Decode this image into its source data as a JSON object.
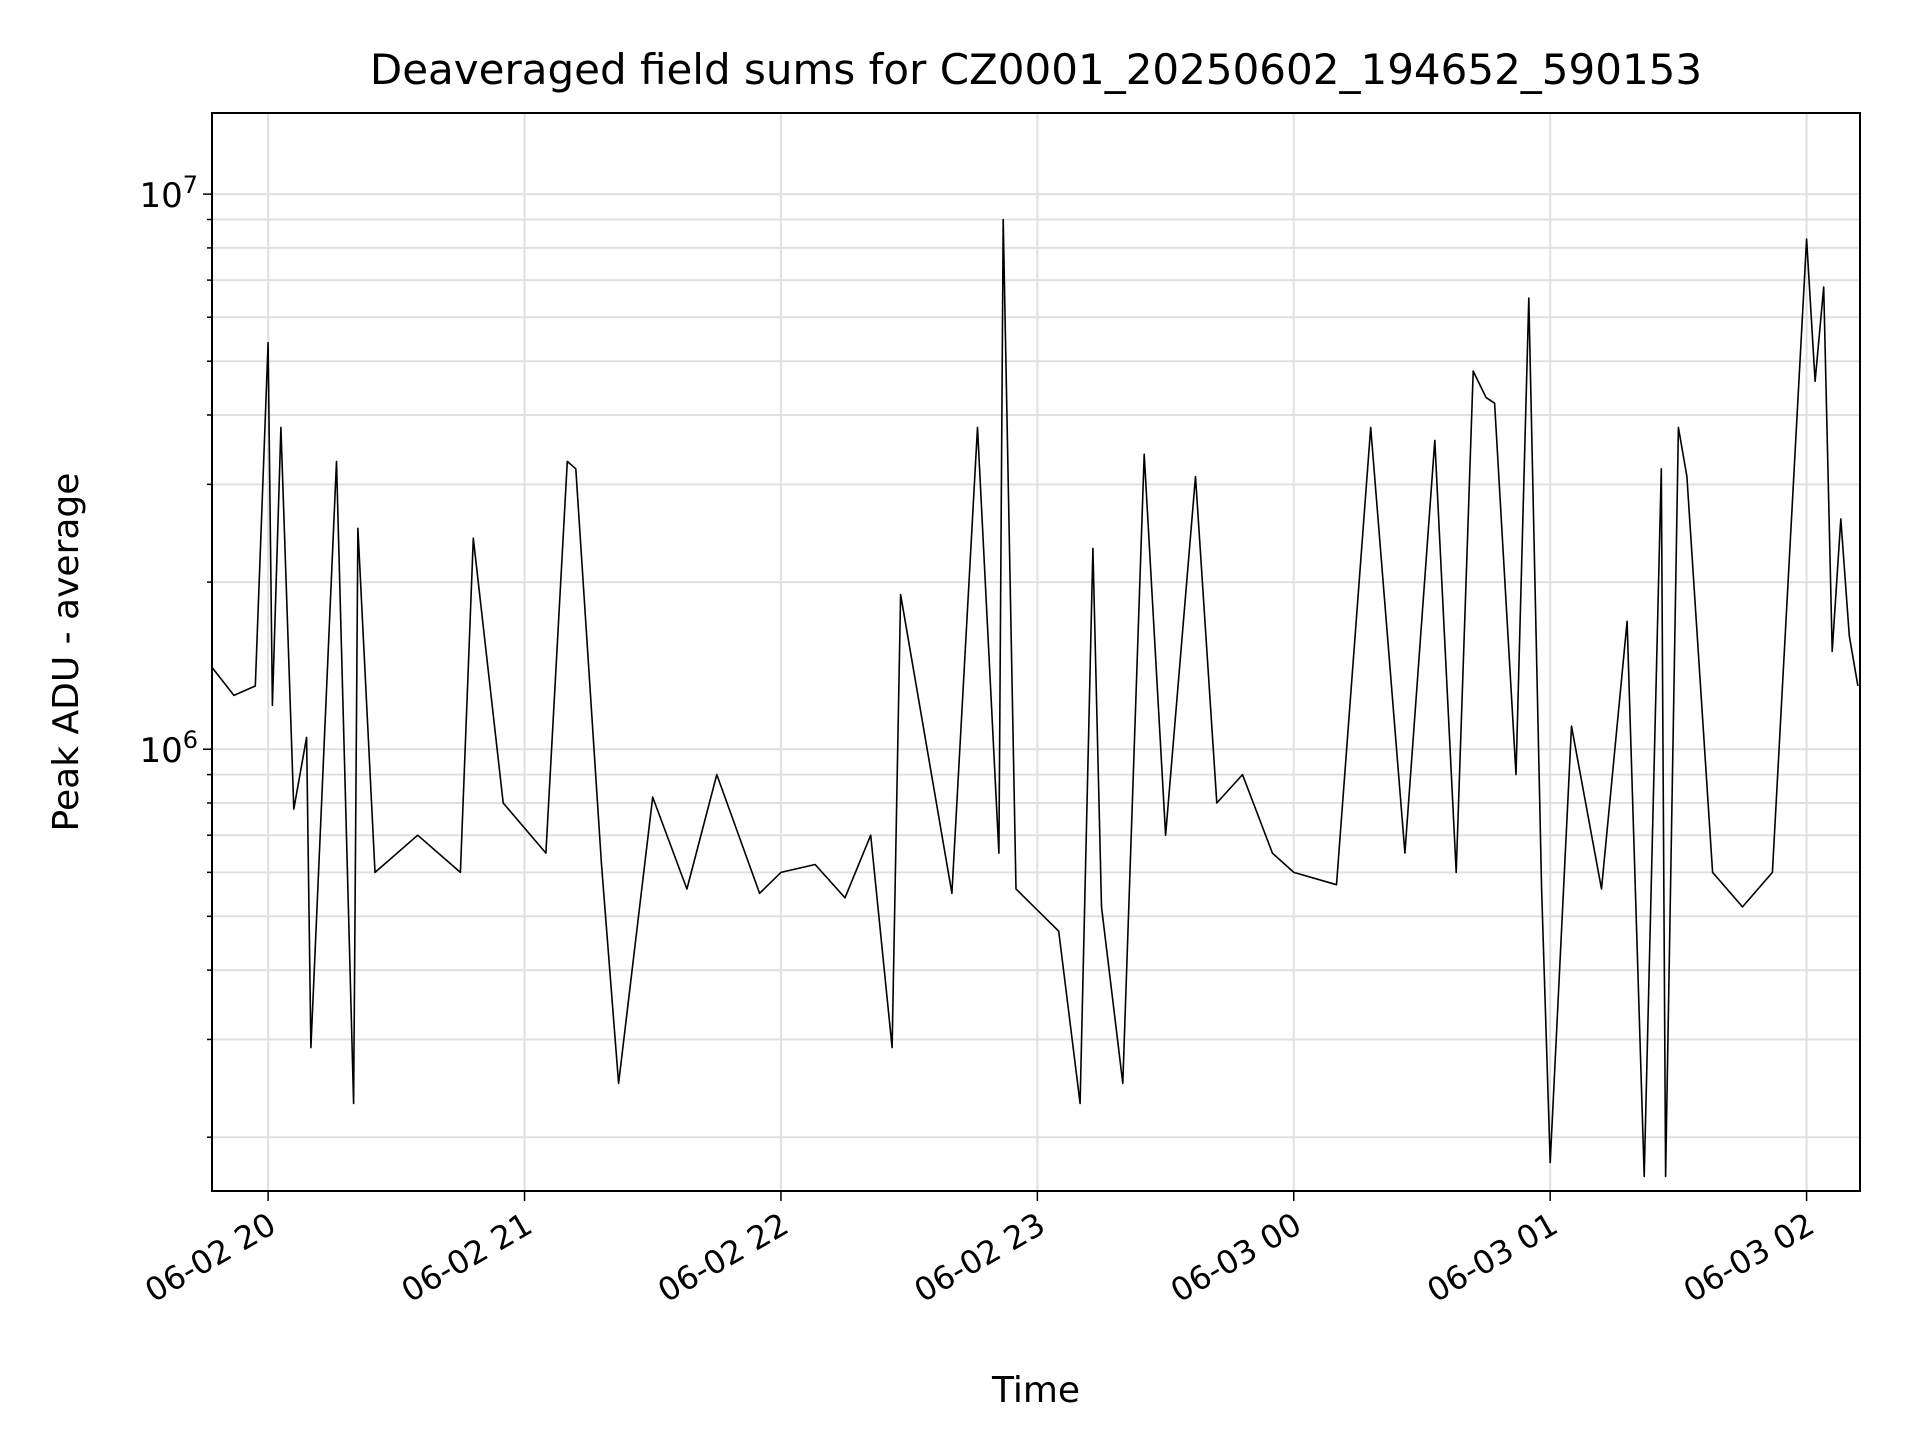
{
  "chart_data": {
    "type": "line",
    "title": "Deaveraged field sums for CZ0001_20250602_194652_590153",
    "xlabel": "Time",
    "ylabel": "Peak ADU - average",
    "x_range": [
      "2025-06-02 19:46:52",
      "2025-06-03 02:12:30"
    ],
    "x_ticks": [
      {
        "value": "2025-06-02 20:00",
        "label": "06-02 20"
      },
      {
        "value": "2025-06-02 21:00",
        "label": "06-02 21"
      },
      {
        "value": "2025-06-02 22:00",
        "label": "06-02 22"
      },
      {
        "value": "2025-06-02 23:00",
        "label": "06-02 23"
      },
      {
        "value": "2025-06-03 00:00",
        "label": "06-03 00"
      },
      {
        "value": "2025-06-03 01:00",
        "label": "06-03 01"
      },
      {
        "value": "2025-06-03 02:00",
        "label": "06-03 02"
      }
    ],
    "y_scale": "log",
    "ylim": [
      160000,
      14000000
    ],
    "y_ticks": [
      {
        "value": 1000000,
        "base": "10",
        "exp": "6"
      },
      {
        "value": 10000000,
        "base": "10",
        "exp": "7"
      }
    ],
    "grid": true,
    "line_color": "#000000",
    "grid_color": "#e0e0e0",
    "series": [
      {
        "points": [
          [
            "2025-06-02 19:47",
            1400000
          ],
          [
            "2025-06-02 19:52",
            1250000
          ],
          [
            "2025-06-02 19:57",
            1300000
          ],
          [
            "2025-06-02 20:00",
            5400000
          ],
          [
            "2025-06-02 20:01",
            1200000
          ],
          [
            "2025-06-02 20:03",
            3800000
          ],
          [
            "2025-06-02 20:06",
            780000
          ],
          [
            "2025-06-02 20:09",
            1050000
          ],
          [
            "2025-06-02 20:10",
            290000
          ],
          [
            "2025-06-02 20:16",
            3300000
          ],
          [
            "2025-06-02 20:20",
            230000
          ],
          [
            "2025-06-02 20:21",
            2500000
          ],
          [
            "2025-06-02 20:25",
            600000
          ],
          [
            "2025-06-02 20:35",
            700000
          ],
          [
            "2025-06-02 20:45",
            600000
          ],
          [
            "2025-06-02 20:48",
            2400000
          ],
          [
            "2025-06-02 20:55",
            800000
          ],
          [
            "2025-06-02 21:05",
            650000
          ],
          [
            "2025-06-02 21:10",
            3300000
          ],
          [
            "2025-06-02 21:12",
            3200000
          ],
          [
            "2025-06-02 21:18",
            620000
          ],
          [
            "2025-06-02 21:22",
            250000
          ],
          [
            "2025-06-02 21:30",
            820000
          ],
          [
            "2025-06-02 21:38",
            560000
          ],
          [
            "2025-06-02 21:45",
            900000
          ],
          [
            "2025-06-02 21:55",
            550000
          ],
          [
            "2025-06-02 22:00",
            600000
          ],
          [
            "2025-06-02 22:08",
            620000
          ],
          [
            "2025-06-02 22:15",
            540000
          ],
          [
            "2025-06-02 22:21",
            700000
          ],
          [
            "2025-06-02 22:26",
            290000
          ],
          [
            "2025-06-02 22:28",
            1900000
          ],
          [
            "2025-06-02 22:40",
            550000
          ],
          [
            "2025-06-02 22:46",
            3800000
          ],
          [
            "2025-06-02 22:51",
            650000
          ],
          [
            "2025-06-02 22:52",
            9000000
          ],
          [
            "2025-06-02 22:55",
            560000
          ],
          [
            "2025-06-02 23:05",
            470000
          ],
          [
            "2025-06-02 23:10",
            230000
          ],
          [
            "2025-06-02 23:13",
            2300000
          ],
          [
            "2025-06-02 23:15",
            520000
          ],
          [
            "2025-06-02 23:20",
            250000
          ],
          [
            "2025-06-02 23:25",
            3400000
          ],
          [
            "2025-06-02 23:30",
            700000
          ],
          [
            "2025-06-02 23:37",
            3100000
          ],
          [
            "2025-06-02 23:42",
            800000
          ],
          [
            "2025-06-02 23:48",
            900000
          ],
          [
            "2025-06-02 23:55",
            650000
          ],
          [
            "2025-06-03 00:00",
            600000
          ],
          [
            "2025-06-03 00:10",
            570000
          ],
          [
            "2025-06-03 00:18",
            3800000
          ],
          [
            "2025-06-03 00:26",
            650000
          ],
          [
            "2025-06-03 00:33",
            3600000
          ],
          [
            "2025-06-03 00:38",
            600000
          ],
          [
            "2025-06-03 00:42",
            4800000
          ],
          [
            "2025-06-03 00:45",
            4300000
          ],
          [
            "2025-06-03 00:47",
            4200000
          ],
          [
            "2025-06-03 00:52",
            900000
          ],
          [
            "2025-06-03 00:55",
            6500000
          ],
          [
            "2025-06-03 00:58",
            560000
          ],
          [
            "2025-06-03 01:00",
            180000
          ],
          [
            "2025-06-03 01:05",
            1100000
          ],
          [
            "2025-06-03 01:12",
            560000
          ],
          [
            "2025-06-03 01:18",
            1700000
          ],
          [
            "2025-06-03 01:22",
            170000
          ],
          [
            "2025-06-03 01:26",
            3200000
          ],
          [
            "2025-06-03 01:27",
            170000
          ],
          [
            "2025-06-03 01:30",
            3800000
          ],
          [
            "2025-06-03 01:32",
            3100000
          ],
          [
            "2025-06-03 01:38",
            600000
          ],
          [
            "2025-06-03 01:45",
            520000
          ],
          [
            "2025-06-03 01:52",
            600000
          ],
          [
            "2025-06-03 02:00",
            8300000
          ],
          [
            "2025-06-03 02:02",
            4600000
          ],
          [
            "2025-06-03 02:04",
            6800000
          ],
          [
            "2025-06-03 02:06",
            1500000
          ],
          [
            "2025-06-03 02:08",
            2600000
          ],
          [
            "2025-06-03 02:10",
            1600000
          ],
          [
            "2025-06-03 02:12",
            1300000
          ]
        ]
      }
    ]
  }
}
